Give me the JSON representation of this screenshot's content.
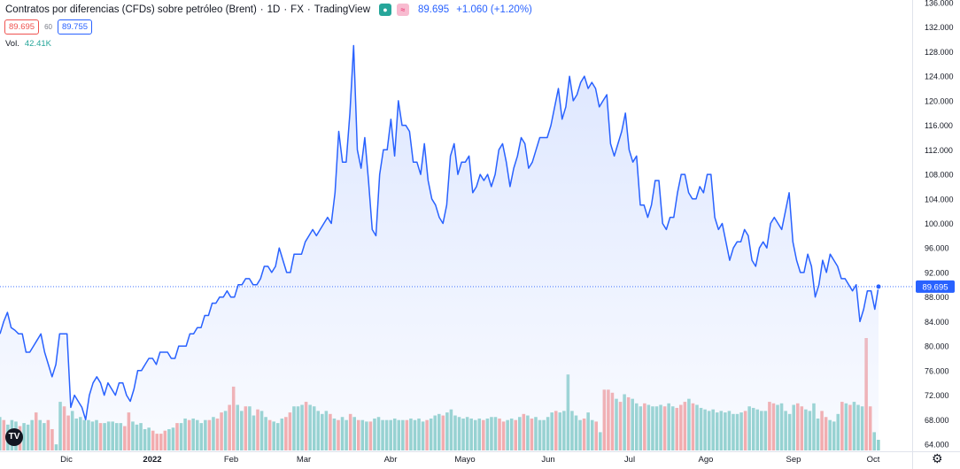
{
  "header": {
    "title": "Contratos por diferencias (CFDs) sobre petróleo (Brent)",
    "sep1": "·",
    "interval": "1D",
    "sep2": "·",
    "exchange": "FX",
    "sep3": "·",
    "provider": "TradingView",
    "badge_market": "●",
    "badge_alt": "≈",
    "last_price": "89.695",
    "change": "+1.060 (+1.20%)"
  },
  "quote": {
    "bid": "89.695",
    "spread": "60",
    "ask": "89.755"
  },
  "volume": {
    "label": "Vol.",
    "value": "42.41K"
  },
  "logo_text": "TV",
  "settings_icon": "gear-icon",
  "colors": {
    "line": "#2962ff",
    "area_top": "#dbe5ff",
    "vol_up": "#26a69a",
    "vol_down": "#ef5350",
    "price_label": "#2962ff"
  },
  "chart_data": {
    "type": "area",
    "title": "Contratos por diferencias (CFDs) sobre petróleo (Brent)",
    "xlabel": "",
    "ylabel": "",
    "ylim": [
      62,
      136
    ],
    "x_ticks": [
      "Dic",
      "2022",
      "Feb",
      "Mar",
      "Abr",
      "Mayo",
      "Jun",
      "Jul",
      "Ago",
      "Sep",
      "Oct"
    ],
    "y_ticks": [
      "64.000",
      "68.000",
      "72.000",
      "76.000",
      "80.000",
      "84.000",
      "88.000",
      "92.000",
      "96.000",
      "100.000",
      "104.000",
      "108.000",
      "112.000",
      "116.000",
      "120.000",
      "124.000",
      "128.000",
      "132.000",
      "136.000"
    ],
    "current_price_label": "89.695",
    "current_price": 89.695,
    "price_series": [
      82,
      84,
      85.5,
      83,
      82.6,
      82,
      82,
      79,
      79,
      80,
      81,
      82,
      79,
      77,
      75,
      77,
      82,
      82,
      82,
      70,
      72,
      71,
      70,
      68,
      72,
      74,
      75,
      74,
      72,
      74,
      73,
      72,
      74,
      74,
      72,
      71,
      73,
      76,
      76,
      77,
      78,
      78,
      77,
      79,
      79,
      79,
      78,
      78,
      80,
      80,
      80,
      82,
      82,
      83,
      83,
      85,
      85,
      87,
      87,
      88,
      88,
      89,
      88,
      88,
      90,
      90,
      91,
      91,
      90,
      90,
      91,
      93,
      93,
      92,
      93,
      96,
      94,
      92,
      92,
      95,
      95,
      95,
      97,
      98,
      99,
      98,
      99,
      100,
      101,
      100,
      105,
      115,
      110,
      110,
      118,
      129,
      112,
      109,
      114,
      107,
      99,
      98,
      108,
      112,
      112,
      117,
      111,
      120,
      116,
      116,
      115,
      110,
      110,
      108,
      113,
      107,
      104,
      103,
      101,
      100,
      103,
      111,
      113,
      108,
      110,
      110,
      111,
      105,
      106,
      108,
      107,
      108,
      106,
      108,
      112,
      113,
      110,
      106,
      109,
      111,
      114,
      113,
      109,
      110,
      112,
      114,
      114,
      114,
      116,
      119,
      122,
      117,
      119,
      124,
      120,
      121,
      123,
      124,
      122,
      123,
      122,
      119,
      120,
      121,
      113,
      111,
      113,
      115,
      118,
      112,
      110,
      111,
      103,
      103,
      101,
      103,
      107,
      107,
      100,
      99,
      101,
      101,
      105,
      108,
      108,
      105,
      104,
      104,
      106,
      105,
      108,
      108,
      101,
      99,
      100,
      97,
      94,
      96,
      97,
      97,
      99,
      98,
      94,
      93,
      96,
      97,
      96,
      100,
      101,
      100,
      99,
      102,
      105,
      97,
      94,
      92,
      92,
      95,
      93,
      88,
      90,
      94,
      92,
      95,
      94,
      93,
      91,
      91,
      90,
      89,
      90,
      84,
      86,
      89,
      89,
      86,
      89.695
    ],
    "volume_series": [
      {
        "v": 1.1,
        "up": true
      },
      {
        "v": 1.0,
        "up": false
      },
      {
        "v": 0.85,
        "up": true
      },
      {
        "v": 1.0,
        "up": true
      },
      {
        "v": 0.95,
        "up": true
      },
      {
        "v": 0.8,
        "up": false
      },
      {
        "v": 0.9,
        "up": true
      },
      {
        "v": 0.85,
        "up": true
      },
      {
        "v": 1.0,
        "up": true
      },
      {
        "v": 1.25,
        "up": false
      },
      {
        "v": 1.0,
        "up": true
      },
      {
        "v": 0.9,
        "up": true
      },
      {
        "v": 1.0,
        "up": false
      },
      {
        "v": 0.7,
        "up": false
      },
      {
        "v": 0.2,
        "up": true
      },
      {
        "v": 1.6,
        "up": true
      },
      {
        "v": 1.45,
        "up": false
      },
      {
        "v": 1.15,
        "up": false
      },
      {
        "v": 1.3,
        "up": true
      },
      {
        "v": 1.05,
        "up": true
      },
      {
        "v": 1.1,
        "up": true
      },
      {
        "v": 1.0,
        "up": true
      },
      {
        "v": 1.0,
        "up": true
      },
      {
        "v": 0.95,
        "up": true
      },
      {
        "v": 1.0,
        "up": true
      },
      {
        "v": 0.9,
        "up": false
      },
      {
        "v": 0.9,
        "up": true
      },
      {
        "v": 0.95,
        "up": true
      },
      {
        "v": 0.95,
        "up": true
      },
      {
        "v": 0.9,
        "up": true
      },
      {
        "v": 0.9,
        "up": true
      },
      {
        "v": 0.8,
        "up": false
      },
      {
        "v": 1.25,
        "up": false
      },
      {
        "v": 0.95,
        "up": true
      },
      {
        "v": 0.85,
        "up": true
      },
      {
        "v": 0.9,
        "up": true
      },
      {
        "v": 0.7,
        "up": true
      },
      {
        "v": 0.75,
        "up": true
      },
      {
        "v": 0.65,
        "up": false
      },
      {
        "v": 0.55,
        "up": false
      },
      {
        "v": 0.55,
        "up": false
      },
      {
        "v": 0.65,
        "up": false
      },
      {
        "v": 0.7,
        "up": true
      },
      {
        "v": 0.75,
        "up": true
      },
      {
        "v": 0.9,
        "up": false
      },
      {
        "v": 0.9,
        "up": true
      },
      {
        "v": 1.05,
        "up": true
      },
      {
        "v": 1.0,
        "up": false
      },
      {
        "v": 1.05,
        "up": true
      },
      {
        "v": 1.0,
        "up": true
      },
      {
        "v": 0.9,
        "up": true
      },
      {
        "v": 1.0,
        "up": true
      },
      {
        "v": 1.0,
        "up": false
      },
      {
        "v": 1.1,
        "up": true
      },
      {
        "v": 1.05,
        "up": false
      },
      {
        "v": 1.25,
        "up": false
      },
      {
        "v": 1.3,
        "up": true
      },
      {
        "v": 1.5,
        "up": false
      },
      {
        "v": 2.1,
        "up": false
      },
      {
        "v": 1.5,
        "up": true
      },
      {
        "v": 1.3,
        "up": true
      },
      {
        "v": 1.45,
        "up": false
      },
      {
        "v": 1.45,
        "up": true
      },
      {
        "v": 1.15,
        "up": true
      },
      {
        "v": 1.35,
        "up": false
      },
      {
        "v": 1.3,
        "up": true
      },
      {
        "v": 1.1,
        "up": true
      },
      {
        "v": 1.0,
        "up": false
      },
      {
        "v": 0.95,
        "up": true
      },
      {
        "v": 0.9,
        "up": true
      },
      {
        "v": 1.05,
        "up": true
      },
      {
        "v": 1.1,
        "up": false
      },
      {
        "v": 1.25,
        "up": false
      },
      {
        "v": 1.45,
        "up": true
      },
      {
        "v": 1.45,
        "up": true
      },
      {
        "v": 1.5,
        "up": true
      },
      {
        "v": 1.6,
        "up": false
      },
      {
        "v": 1.5,
        "up": true
      },
      {
        "v": 1.45,
        "up": true
      },
      {
        "v": 1.3,
        "up": true
      },
      {
        "v": 1.2,
        "up": true
      },
      {
        "v": 1.3,
        "up": true
      },
      {
        "v": 1.2,
        "up": false
      },
      {
        "v": 1.05,
        "up": true
      },
      {
        "v": 1.0,
        "up": false
      },
      {
        "v": 1.1,
        "up": true
      },
      {
        "v": 1.0,
        "up": true
      },
      {
        "v": 1.2,
        "up": false
      },
      {
        "v": 1.1,
        "up": true
      },
      {
        "v": 1.0,
        "up": false
      },
      {
        "v": 1.0,
        "up": true
      },
      {
        "v": 0.95,
        "up": true
      },
      {
        "v": 0.95,
        "up": false
      },
      {
        "v": 1.05,
        "up": true
      },
      {
        "v": 1.1,
        "up": true
      },
      {
        "v": 1.0,
        "up": true
      },
      {
        "v": 1.0,
        "up": true
      },
      {
        "v": 1.0,
        "up": true
      },
      {
        "v": 1.05,
        "up": true
      },
      {
        "v": 1.0,
        "up": true
      },
      {
        "v": 1.0,
        "up": true
      },
      {
        "v": 1.0,
        "up": false
      },
      {
        "v": 1.05,
        "up": true
      },
      {
        "v": 1.0,
        "up": true
      },
      {
        "v": 1.05,
        "up": true
      },
      {
        "v": 0.95,
        "up": true
      },
      {
        "v": 1.0,
        "up": false
      },
      {
        "v": 1.05,
        "up": true
      },
      {
        "v": 1.15,
        "up": true
      },
      {
        "v": 1.2,
        "up": true
      },
      {
        "v": 1.15,
        "up": false
      },
      {
        "v": 1.25,
        "up": true
      },
      {
        "v": 1.35,
        "up": true
      },
      {
        "v": 1.15,
        "up": true
      },
      {
        "v": 1.1,
        "up": true
      },
      {
        "v": 1.05,
        "up": true
      },
      {
        "v": 1.1,
        "up": true
      },
      {
        "v": 1.05,
        "up": true
      },
      {
        "v": 1.0,
        "up": true
      },
      {
        "v": 1.05,
        "up": true
      },
      {
        "v": 1.0,
        "up": false
      },
      {
        "v": 1.05,
        "up": true
      },
      {
        "v": 1.1,
        "up": true
      },
      {
        "v": 1.1,
        "up": true
      },
      {
        "v": 1.05,
        "up": false
      },
      {
        "v": 0.95,
        "up": false
      },
      {
        "v": 1.0,
        "up": true
      },
      {
        "v": 1.05,
        "up": true
      },
      {
        "v": 1.0,
        "up": false
      },
      {
        "v": 1.1,
        "up": true
      },
      {
        "v": 1.2,
        "up": false
      },
      {
        "v": 1.15,
        "up": true
      },
      {
        "v": 1.05,
        "up": false
      },
      {
        "v": 1.1,
        "up": true
      },
      {
        "v": 1.0,
        "up": true
      },
      {
        "v": 1.0,
        "up": true
      },
      {
        "v": 1.1,
        "up": true
      },
      {
        "v": 1.25,
        "up": true
      },
      {
        "v": 1.3,
        "up": false
      },
      {
        "v": 1.25,
        "up": true
      },
      {
        "v": 1.3,
        "up": true
      },
      {
        "v": 2.5,
        "up": true
      },
      {
        "v": 1.3,
        "up": true
      },
      {
        "v": 1.15,
        "up": true
      },
      {
        "v": 1.0,
        "up": true
      },
      {
        "v": 1.05,
        "up": false
      },
      {
        "v": 1.25,
        "up": true
      },
      {
        "v": 1.0,
        "up": true
      },
      {
        "v": 0.95,
        "up": false
      },
      {
        "v": 0.6,
        "up": true
      },
      {
        "v": 2.0,
        "up": false
      },
      {
        "v": 2.0,
        "up": false
      },
      {
        "v": 1.9,
        "up": false
      },
      {
        "v": 1.7,
        "up": true
      },
      {
        "v": 1.6,
        "up": false
      },
      {
        "v": 1.85,
        "up": true
      },
      {
        "v": 1.75,
        "up": false
      },
      {
        "v": 1.7,
        "up": true
      },
      {
        "v": 1.55,
        "up": true
      },
      {
        "v": 1.45,
        "up": true
      },
      {
        "v": 1.55,
        "up": false
      },
      {
        "v": 1.5,
        "up": true
      },
      {
        "v": 1.45,
        "up": true
      },
      {
        "v": 1.45,
        "up": true
      },
      {
        "v": 1.5,
        "up": true
      },
      {
        "v": 1.45,
        "up": false
      },
      {
        "v": 1.55,
        "up": true
      },
      {
        "v": 1.45,
        "up": true
      },
      {
        "v": 1.4,
        "up": false
      },
      {
        "v": 1.5,
        "up": false
      },
      {
        "v": 1.6,
        "up": false
      },
      {
        "v": 1.7,
        "up": true
      },
      {
        "v": 1.55,
        "up": false
      },
      {
        "v": 1.5,
        "up": true
      },
      {
        "v": 1.4,
        "up": true
      },
      {
        "v": 1.35,
        "up": true
      },
      {
        "v": 1.3,
        "up": true
      },
      {
        "v": 1.35,
        "up": true
      },
      {
        "v": 1.25,
        "up": true
      },
      {
        "v": 1.3,
        "up": true
      },
      {
        "v": 1.25,
        "up": true
      },
      {
        "v": 1.3,
        "up": true
      },
      {
        "v": 1.2,
        "up": true
      },
      {
        "v": 1.2,
        "up": true
      },
      {
        "v": 1.25,
        "up": true
      },
      {
        "v": 1.3,
        "up": false
      },
      {
        "v": 1.45,
        "up": true
      },
      {
        "v": 1.4,
        "up": true
      },
      {
        "v": 1.35,
        "up": true
      },
      {
        "v": 1.3,
        "up": true
      },
      {
        "v": 1.3,
        "up": true
      },
      {
        "v": 1.6,
        "up": false
      },
      {
        "v": 1.55,
        "up": false
      },
      {
        "v": 1.5,
        "up": true
      },
      {
        "v": 1.55,
        "up": true
      },
      {
        "v": 1.3,
        "up": true
      },
      {
        "v": 1.2,
        "up": true
      },
      {
        "v": 1.5,
        "up": true
      },
      {
        "v": 1.55,
        "up": false
      },
      {
        "v": 1.45,
        "up": false
      },
      {
        "v": 1.35,
        "up": true
      },
      {
        "v": 1.3,
        "up": true
      },
      {
        "v": 1.55,
        "up": true
      },
      {
        "v": 1.05,
        "up": true
      },
      {
        "v": 1.3,
        "up": false
      },
      {
        "v": 1.1,
        "up": false
      },
      {
        "v": 1.0,
        "up": true
      },
      {
        "v": 0.95,
        "up": true
      },
      {
        "v": 1.2,
        "up": true
      },
      {
        "v": 1.6,
        "up": false
      },
      {
        "v": 1.55,
        "up": true
      },
      {
        "v": 1.5,
        "up": false
      },
      {
        "v": 1.6,
        "up": true
      },
      {
        "v": 1.5,
        "up": true
      },
      {
        "v": 1.45,
        "up": true
      },
      {
        "v": 3.7,
        "up": false
      },
      {
        "v": 1.45,
        "up": false
      },
      {
        "v": 0.6,
        "up": true
      },
      {
        "v": 0.35,
        "up": true
      }
    ]
  }
}
